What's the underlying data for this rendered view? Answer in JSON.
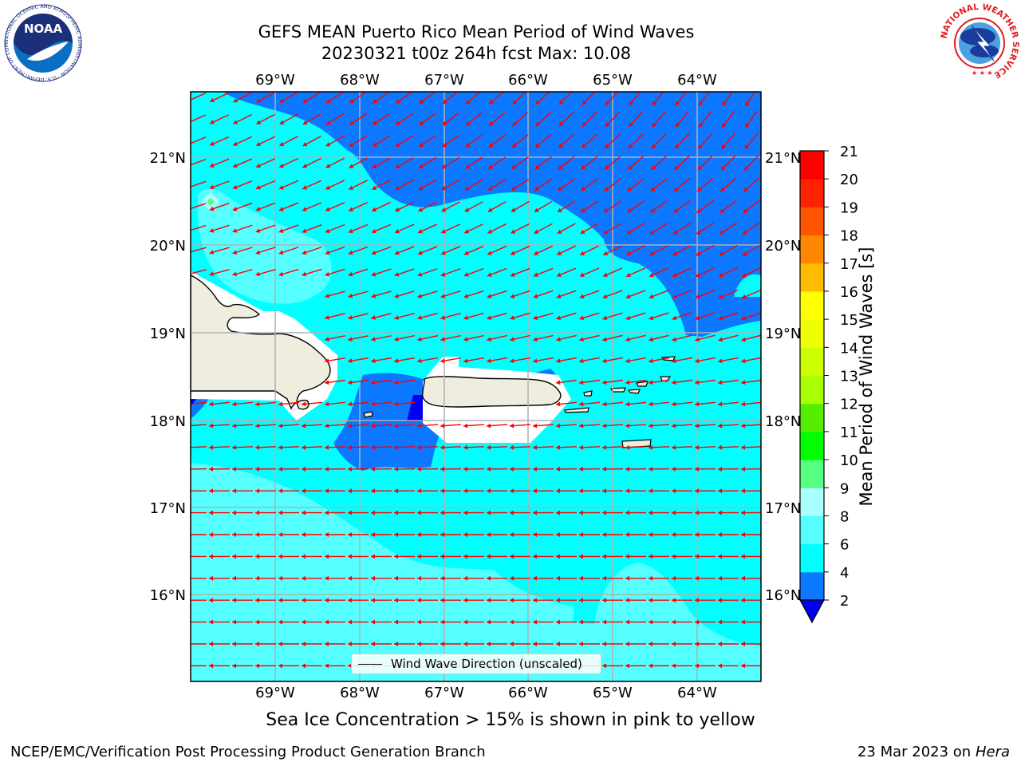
{
  "header": {
    "title_line1": "GEFS MEAN Puerto Rico Mean Period of Wind Waves",
    "title_line2": "20230321 t00z 264h fcst   Max: 10.08"
  },
  "map": {
    "lon_labels": [
      "69°W",
      "68°W",
      "67°W",
      "66°W",
      "65°W",
      "64°W"
    ],
    "lat_labels": [
      "21°N",
      "20°N",
      "19°N",
      "18°N",
      "17°N",
      "16°N"
    ],
    "land_color": "#efedde",
    "arrow_color": "#ff0000",
    "grid": true,
    "legend": {
      "label": "Wind Wave Direction (unscaled)"
    }
  },
  "colorbar": {
    "label": "Mean Period of Wind Waves [s]",
    "ticks": [
      "2",
      "4",
      "6",
      "8",
      "9",
      "10",
      "11",
      "12",
      "13",
      "14",
      "15",
      "16",
      "17",
      "18",
      "19",
      "20",
      "21"
    ],
    "colors": [
      "#0000ee",
      "#0b78ff",
      "#00ffff",
      "#55ffff",
      "#aaffff",
      "#55ff80",
      "#00ff00",
      "#55ee00",
      "#aaff00",
      "#ccff00",
      "#eeff00",
      "#ffff00",
      "#ffbb00",
      "#ff8800",
      "#ff5500",
      "#ff2200",
      "#ff0000"
    ]
  },
  "notes": {
    "sea_ice": "Sea Ice Concentration > 15% is shown in pink to yellow"
  },
  "footer": {
    "left": "NCEP/EMC/Verification Post Processing Product Generation Branch",
    "date": "23 Mar 2023 on",
    "machine": "Hera"
  },
  "logos": {
    "noaa_text": "NOAA",
    "noaa_ring": "NATIONAL OCEANIC AND ATMOSPHERIC ADMINISTRATION · U.S. DEPARTMENT OF COMMERCE",
    "nws_ring": "NATIONAL WEATHER SERVICE"
  }
}
